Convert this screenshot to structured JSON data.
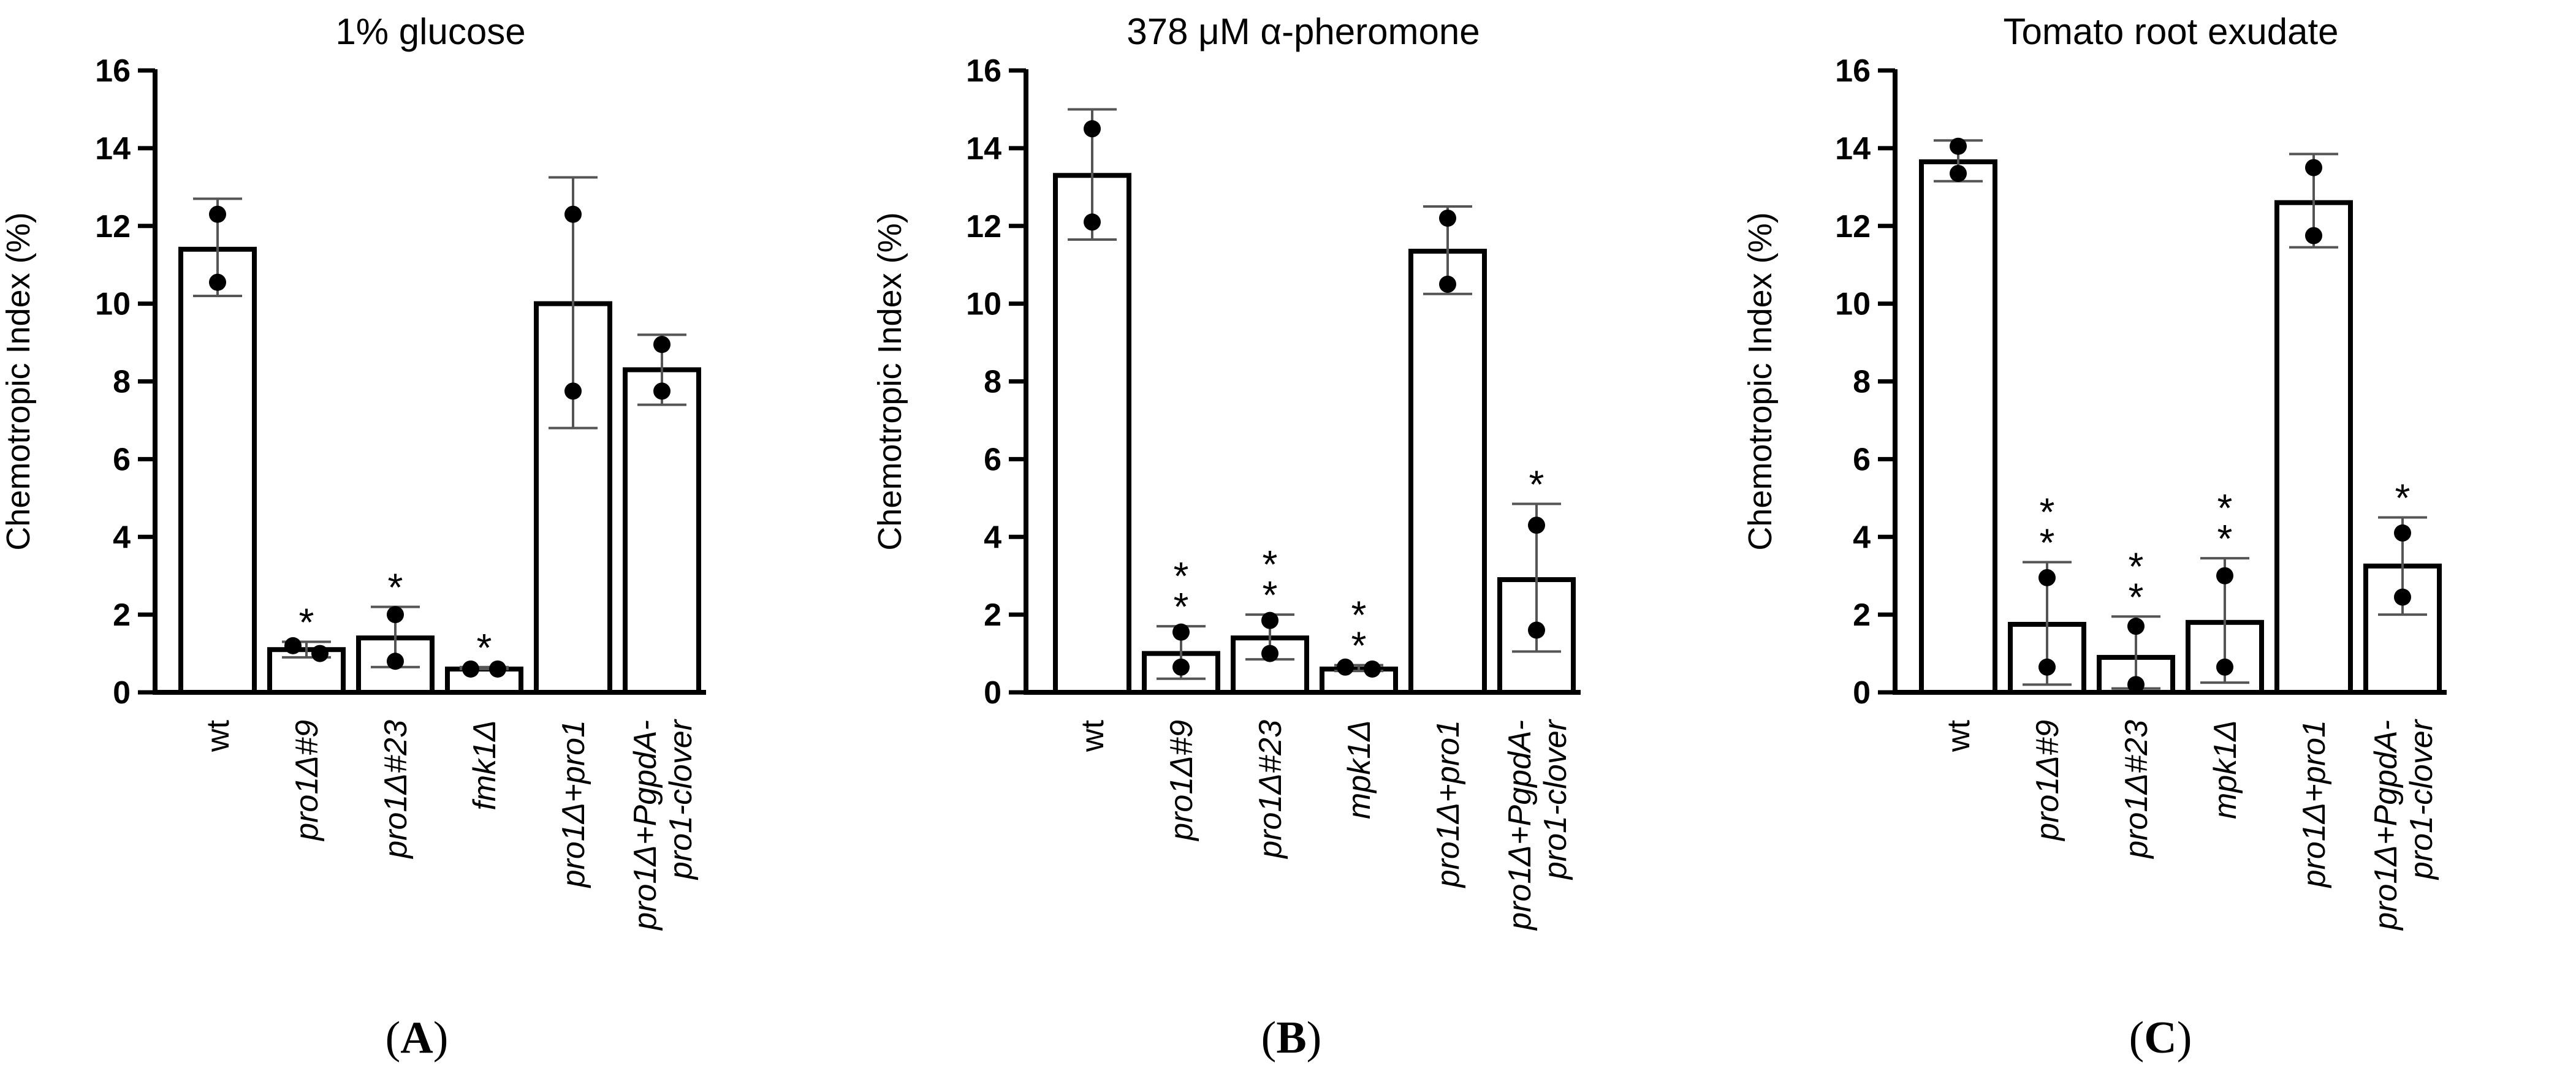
{
  "chart_data": [
    {
      "type": "bar",
      "panel": "A",
      "title": "1% glucose",
      "ylabel": "Chemotropic Index (%)",
      "ylim": [
        0,
        16
      ],
      "yticks": [
        "0",
        "2",
        "4",
        "6",
        "8",
        "10",
        "12",
        "14",
        "16"
      ],
      "categories": [
        "wt",
        "pro1Δ#9",
        "pro1Δ#23",
        "fmk1Δ",
        "pro1Δ+pro1",
        "pro1Δ+PgpdA-\npro1-clover"
      ],
      "category_italic": [
        false,
        true,
        true,
        true,
        true,
        true
      ],
      "values": [
        11.4,
        1.1,
        1.4,
        0.6,
        10.0,
        8.3
      ],
      "error": [
        [
          10.2,
          12.7
        ],
        [
          0.9,
          1.3
        ],
        [
          0.65,
          2.2
        ],
        [
          0.6,
          0.65
        ],
        [
          6.8,
          13.25
        ],
        [
          7.4,
          9.2
        ]
      ],
      "points": [
        [
          12.3,
          10.55
        ],
        [
          1.2,
          1.0
        ],
        [
          2.0,
          0.8
        ],
        [
          0.6,
          0.6
        ],
        [
          12.3,
          7.75
        ],
        [
          8.95,
          7.75
        ]
      ],
      "significance": [
        "",
        "*",
        "*",
        "*",
        "",
        ""
      ]
    },
    {
      "type": "bar",
      "panel": "B",
      "title": "378 μM α-pheromone",
      "ylabel": "Chemotropic Index (%)",
      "ylim": [
        0,
        16
      ],
      "yticks": [
        "0",
        "2",
        "4",
        "6",
        "8",
        "10",
        "12",
        "14",
        "16"
      ],
      "categories": [
        "wt",
        "pro1Δ#9",
        "pro1Δ#23",
        "mpk1Δ",
        "pro1Δ+pro1",
        "pro1Δ+PgpdA-\npro1-clover"
      ],
      "category_italic": [
        false,
        true,
        true,
        true,
        true,
        true
      ],
      "values": [
        13.3,
        1.0,
        1.4,
        0.6,
        11.35,
        2.9
      ],
      "error": [
        [
          11.65,
          15.0
        ],
        [
          0.35,
          1.7
        ],
        [
          0.85,
          2.0
        ],
        [
          0.55,
          0.7
        ],
        [
          10.25,
          12.5
        ],
        [
          1.05,
          4.85
        ]
      ],
      "points": [
        [
          14.5,
          12.1
        ],
        [
          1.55,
          0.65
        ],
        [
          1.85,
          1.0
        ],
        [
          0.65,
          0.6
        ],
        [
          12.2,
          10.5
        ],
        [
          4.3,
          1.6
        ]
      ],
      "significance": [
        "",
        "**",
        "**",
        "**",
        "",
        "*"
      ]
    },
    {
      "type": "bar",
      "panel": "C",
      "title": "Tomato root exudate",
      "ylabel": "Chemotropic Index (%)",
      "ylim": [
        0,
        16
      ],
      "yticks": [
        "0",
        "2",
        "4",
        "6",
        "8",
        "10",
        "12",
        "14",
        "16"
      ],
      "categories": [
        "wt",
        "pro1Δ#9",
        "pro1Δ#23",
        "mpk1Δ",
        "pro1Δ+pro1",
        "pro1Δ+PgpdA-\npro1-clover"
      ],
      "category_italic": [
        false,
        true,
        true,
        true,
        true,
        true
      ],
      "values": [
        13.65,
        1.75,
        0.9,
        1.8,
        12.6,
        3.25
      ],
      "error": [
        [
          13.15,
          14.2
        ],
        [
          0.2,
          3.35
        ],
        [
          0.1,
          1.95
        ],
        [
          0.25,
          3.45
        ],
        [
          11.45,
          13.85
        ],
        [
          2.0,
          4.5
        ]
      ],
      "points": [
        [
          14.05,
          13.35
        ],
        [
          2.95,
          0.65
        ],
        [
          1.7,
          0.2
        ],
        [
          3.0,
          0.65
        ],
        [
          13.5,
          11.75
        ],
        [
          4.1,
          2.45
        ]
      ],
      "significance": [
        "",
        "**",
        "**",
        "**",
        "",
        "*"
      ]
    }
  ],
  "panel_labels": [
    "(A)",
    "(B)",
    "(C)"
  ]
}
